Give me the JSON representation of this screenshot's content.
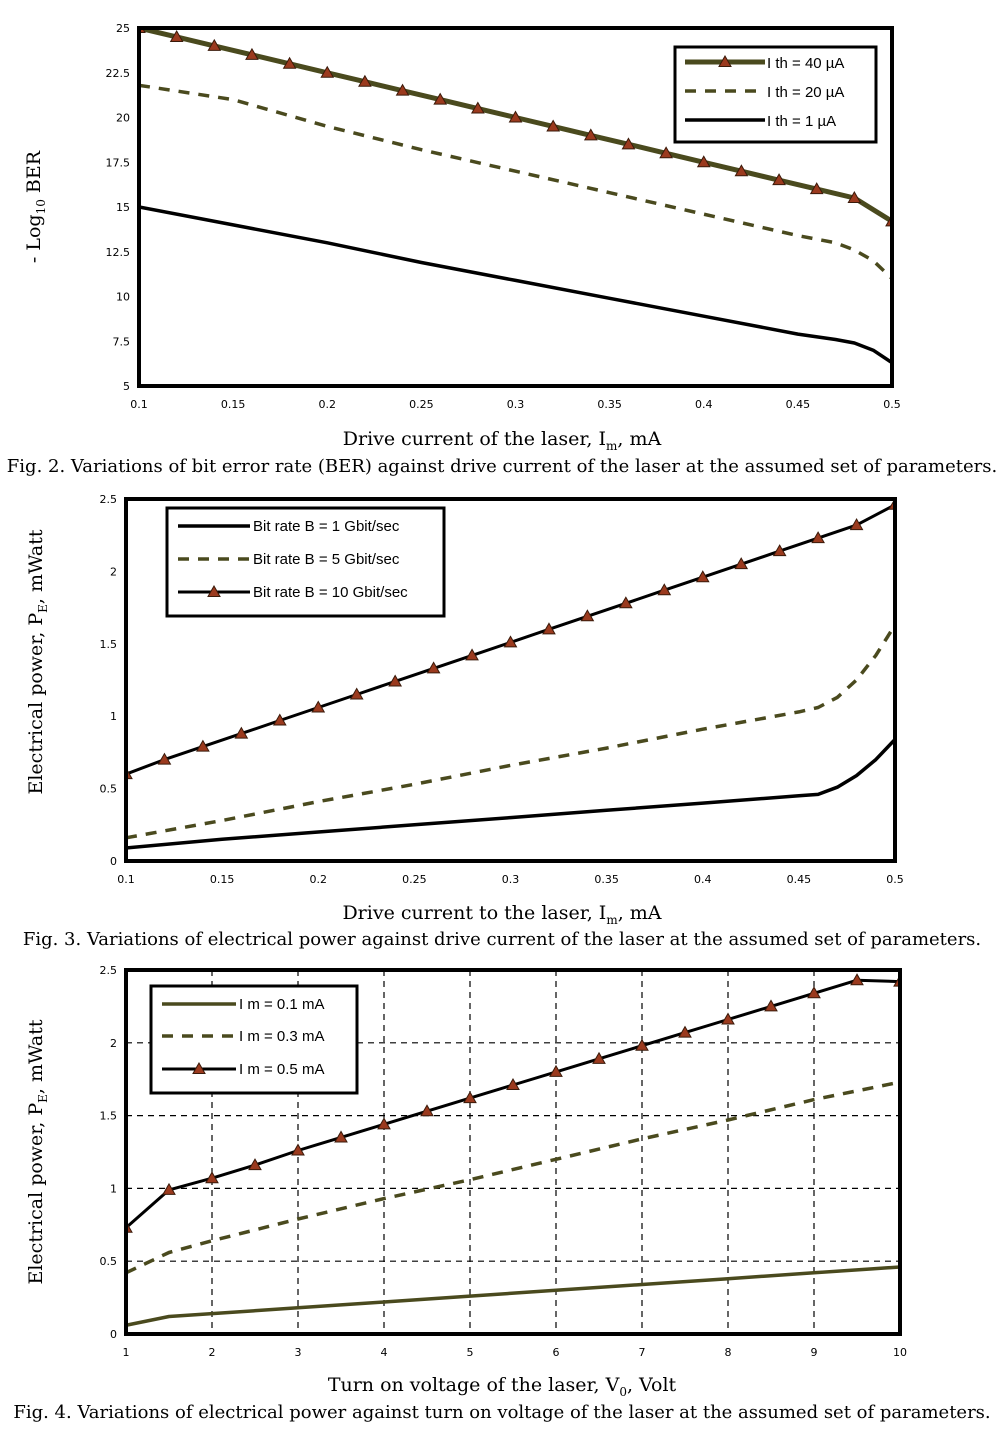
{
  "colors": {
    "olive": "#4a4a1e",
    "marker": "#9b3a1e",
    "black": "#000000"
  },
  "chart_data": [
    {
      "type": "line",
      "caption": "Fig. 2. Variations of bit error rate (BER) against drive current of the laser at the assumed set of parameters.",
      "xlabel": {
        "main": "Drive current of the laser, I",
        "sub": "m",
        "rest": ", mA"
      },
      "ylabel": {
        "pre": "- Log",
        "sub": "10",
        "post": " BER"
      },
      "xlim": [
        0.1,
        0.5
      ],
      "ylim": [
        5,
        25
      ],
      "grid": false,
      "legend_position": "top-right",
      "xticks": [
        0.1,
        0.15,
        0.2,
        0.25,
        0.3,
        0.35,
        0.4,
        0.45,
        0.5
      ],
      "yticks": [
        5,
        7.5,
        10,
        12.5,
        15,
        17.5,
        20,
        22.5,
        25
      ],
      "series": [
        {
          "name": "I th = 40 µA",
          "style": "marker-thick",
          "x": [
            0.1,
            0.12,
            0.14,
            0.16,
            0.18,
            0.2,
            0.22,
            0.24,
            0.26,
            0.28,
            0.3,
            0.32,
            0.34,
            0.36,
            0.38,
            0.4,
            0.42,
            0.44,
            0.46,
            0.48,
            0.5
          ],
          "y": [
            25,
            24.5,
            24,
            23.5,
            23,
            22.5,
            22,
            21.5,
            21,
            20.5,
            20,
            19.5,
            19,
            18.5,
            18,
            17.5,
            17,
            16.5,
            16,
            15.5,
            14.2
          ]
        },
        {
          "name": "I th = 20 µA",
          "style": "dashed",
          "x": [
            0.1,
            0.15,
            0.2,
            0.25,
            0.3,
            0.35,
            0.4,
            0.45,
            0.47,
            0.48,
            0.49,
            0.5
          ],
          "y": [
            21.8,
            21,
            19.5,
            18.2,
            17,
            15.8,
            14.6,
            13.4,
            13.0,
            12.6,
            12.0,
            11.0
          ]
        },
        {
          "name": "I th = 1 µA",
          "style": "solid",
          "x": [
            0.1,
            0.15,
            0.2,
            0.25,
            0.3,
            0.35,
            0.4,
            0.45,
            0.47,
            0.48,
            0.49,
            0.5
          ],
          "y": [
            15,
            14,
            13,
            11.9,
            10.9,
            9.9,
            8.9,
            7.9,
            7.6,
            7.4,
            7.0,
            6.3
          ]
        }
      ]
    },
    {
      "type": "line",
      "caption": "Fig. 3. Variations of electrical power against drive current of the laser at the assumed set of parameters.",
      "xlabel": {
        "main": "Drive current to the laser, I",
        "sub": "m",
        "rest": ", mA"
      },
      "ylabel": {
        "pre": "Electrical power, P",
        "sub": "E",
        "post": ", mWatt"
      },
      "xlim": [
        0.1,
        0.5
      ],
      "ylim": [
        0,
        2.5
      ],
      "grid": false,
      "legend_position": "top-left",
      "xticks": [
        0.1,
        0.15,
        0.2,
        0.25,
        0.3,
        0.35,
        0.4,
        0.45,
        0.5
      ],
      "yticks": [
        0,
        0.5,
        1,
        1.5,
        2,
        2.5
      ],
      "series": [
        {
          "name": "Bit rate B = 1 Gbit/sec",
          "style": "solid",
          "x": [
            0.1,
            0.15,
            0.2,
            0.25,
            0.3,
            0.35,
            0.4,
            0.45,
            0.46,
            0.47,
            0.48,
            0.49,
            0.5
          ],
          "y": [
            0.09,
            0.15,
            0.2,
            0.25,
            0.3,
            0.35,
            0.4,
            0.45,
            0.46,
            0.51,
            0.59,
            0.7,
            0.84
          ]
        },
        {
          "name": "Bit rate B = 5 Gbit/sec",
          "style": "dashed",
          "x": [
            0.1,
            0.15,
            0.2,
            0.25,
            0.3,
            0.35,
            0.4,
            0.45,
            0.46,
            0.47,
            0.48,
            0.49,
            0.5
          ],
          "y": [
            0.16,
            0.28,
            0.41,
            0.53,
            0.66,
            0.78,
            0.91,
            1.03,
            1.06,
            1.13,
            1.25,
            1.42,
            1.63
          ]
        },
        {
          "name": "Bit rate B = 10 Gbit/sec",
          "style": "marker",
          "x": [
            0.1,
            0.12,
            0.14,
            0.16,
            0.18,
            0.2,
            0.22,
            0.24,
            0.26,
            0.28,
            0.3,
            0.32,
            0.34,
            0.36,
            0.38,
            0.4,
            0.42,
            0.44,
            0.46,
            0.48,
            0.5
          ],
          "y": [
            0.6,
            0.7,
            0.79,
            0.88,
            0.97,
            1.06,
            1.15,
            1.24,
            1.33,
            1.42,
            1.51,
            1.6,
            1.69,
            1.78,
            1.87,
            1.96,
            2.05,
            2.14,
            2.23,
            2.32,
            2.46
          ]
        }
      ]
    },
    {
      "type": "line",
      "caption": "Fig. 4. Variations of electrical power against turn on voltage of the laser at the assumed set of parameters.",
      "xlabel": {
        "main": "Turn on voltage of the laser, V",
        "sub": "0",
        "rest": ", Volt"
      },
      "ylabel": {
        "pre": "Electrical power, P",
        "sub": "E",
        "post": ", mWatt"
      },
      "xlim": [
        1,
        10
      ],
      "ylim": [
        0,
        2.5
      ],
      "grid": true,
      "legend_position": "top-left",
      "xticks": [
        1,
        2,
        3,
        4,
        5,
        6,
        7,
        8,
        9,
        10
      ],
      "yticks": [
        0,
        0.5,
        1,
        1.5,
        2,
        2.5
      ],
      "series": [
        {
          "name": "I m = 0.1 mA",
          "style": "solid-olive",
          "x": [
            1,
            1.5,
            2,
            3,
            4,
            5,
            6,
            7,
            8,
            9,
            10
          ],
          "y": [
            0.06,
            0.12,
            0.14,
            0.18,
            0.22,
            0.26,
            0.3,
            0.34,
            0.38,
            0.42,
            0.46
          ]
        },
        {
          "name": "I m = 0.3 mA",
          "style": "dashed",
          "x": [
            1,
            1.5,
            2,
            3,
            4,
            5,
            6,
            7,
            8,
            9,
            10
          ],
          "y": [
            0.42,
            0.56,
            0.64,
            0.79,
            0.93,
            1.06,
            1.2,
            1.34,
            1.47,
            1.61,
            1.73
          ]
        },
        {
          "name": "I m = 0.5 mA",
          "style": "marker",
          "x": [
            1,
            1.5,
            2,
            2.5,
            3,
            3.5,
            4,
            4.5,
            5,
            5.5,
            6,
            6.5,
            7,
            7.5,
            8,
            8.5,
            9,
            9.5,
            10
          ],
          "y": [
            0.73,
            0.99,
            1.07,
            1.16,
            1.26,
            1.35,
            1.44,
            1.53,
            1.62,
            1.71,
            1.8,
            1.89,
            1.98,
            2.07,
            2.16,
            2.25,
            2.34,
            2.43,
            2.42
          ]
        }
      ]
    }
  ]
}
